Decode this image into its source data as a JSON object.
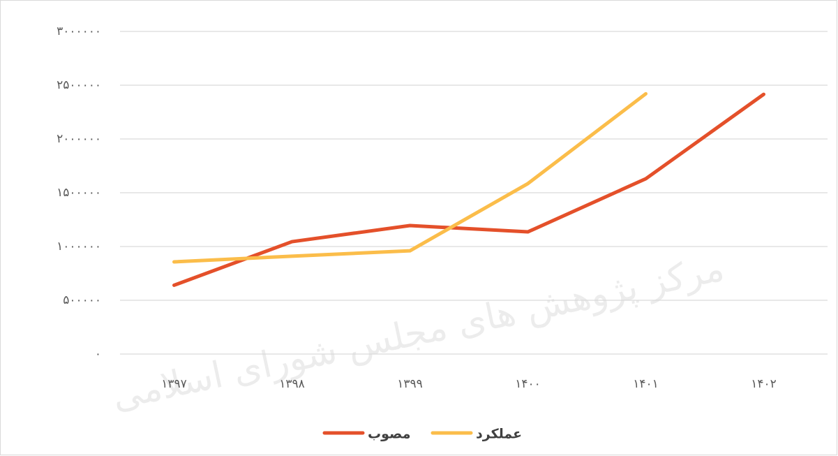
{
  "chart_data": {
    "type": "line",
    "watermark": "مرکز پژوهش های مجلس شورای اسلامی",
    "categories": [
      "۱۳۹۷",
      "۱۳۹۸",
      "۱۳۹۹",
      "۱۴۰۰",
      "۱۴۰۱",
      "۱۴۰۲"
    ],
    "series": [
      {
        "name": "مصوب",
        "color": "#e4502a",
        "values": [
          640000,
          1045000,
          1195000,
          1136000,
          1630000,
          2415000
        ]
      },
      {
        "name": "عملکرد",
        "color": "#fbbd4a",
        "values": [
          857000,
          910000,
          960000,
          1585000,
          2420000,
          null
        ]
      }
    ],
    "ylim": [
      0,
      3000000
    ],
    "yticks": [
      {
        "value": 0,
        "label": "۰"
      },
      {
        "value": 500000,
        "label": "۵۰۰۰۰۰"
      },
      {
        "value": 1000000,
        "label": "۱۰۰۰۰۰۰"
      },
      {
        "value": 1500000,
        "label": "۱۵۰۰۰۰۰"
      },
      {
        "value": 2000000,
        "label": "۲۰۰۰۰۰۰"
      },
      {
        "value": 2500000,
        "label": "۲۵۰۰۰۰۰"
      },
      {
        "value": 3000000,
        "label": "۳۰۰۰۰۰۰"
      }
    ],
    "grid": true,
    "legend": "bottom"
  }
}
